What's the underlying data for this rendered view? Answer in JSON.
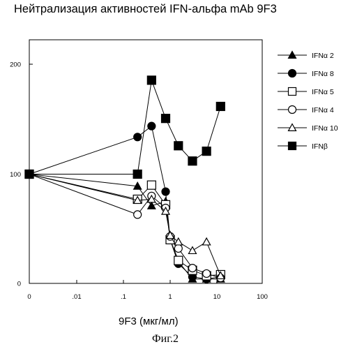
{
  "chart_data": {
    "type": "line",
    "title": "Нейтрализация активностей IFN-альфа mAb 9F3",
    "xlabel": "9F3 (мкг/мл)",
    "ylabel": "",
    "x_scale": "log",
    "x_ticks": [
      "0",
      ".01",
      ".1",
      "1",
      "10",
      "100"
    ],
    "y_ticks": [
      "0",
      "100",
      "200"
    ],
    "ylim": [
      0,
      225
    ],
    "grid": false,
    "legend_position": "right",
    "series": [
      {
        "name": "IFNα 2",
        "marker": "filled-triangle",
        "points": [
          [
            0,
            100
          ],
          [
            0.2,
            89
          ],
          [
            0.4,
            71
          ],
          [
            0.8,
            75
          ],
          [
            1.0,
            40
          ],
          [
            1.5,
            20
          ],
          [
            3.0,
            4
          ],
          [
            6.0,
            4
          ],
          [
            12.0,
            4
          ]
        ]
      },
      {
        "name": "IFNα 8",
        "marker": "filled-circle",
        "points": [
          [
            0,
            100
          ],
          [
            0.2,
            134
          ],
          [
            0.4,
            144
          ],
          [
            0.8,
            84
          ],
          [
            1.0,
            40
          ],
          [
            1.5,
            18
          ],
          [
            3.0,
            6
          ],
          [
            6.0,
            4
          ],
          [
            12.0,
            6
          ]
        ]
      },
      {
        "name": "IFNα 5",
        "marker": "open-square",
        "points": [
          [
            0,
            100
          ],
          [
            0.2,
            77
          ],
          [
            0.4,
            90
          ],
          [
            0.8,
            72
          ],
          [
            1.0,
            40
          ],
          [
            1.5,
            21
          ],
          [
            3.0,
            12
          ],
          [
            6.0,
            7
          ],
          [
            12.0,
            8
          ]
        ]
      },
      {
        "name": "IFNα 4",
        "marker": "open-circle",
        "points": [
          [
            0,
            100
          ],
          [
            0.2,
            63
          ],
          [
            0.4,
            80
          ],
          [
            0.8,
            69
          ],
          [
            1.0,
            43
          ],
          [
            1.5,
            32
          ],
          [
            3.0,
            14
          ],
          [
            6.0,
            9
          ],
          [
            12.0,
            5
          ]
        ]
      },
      {
        "name": "IFNα 10",
        "marker": "open-triangle",
        "points": [
          [
            0,
            100
          ],
          [
            0.2,
            76
          ],
          [
            0.4,
            77
          ],
          [
            0.8,
            66
          ],
          [
            1.0,
            44
          ],
          [
            1.5,
            38
          ],
          [
            3.0,
            30
          ],
          [
            6.0,
            38
          ],
          [
            12.0,
            7
          ]
        ]
      },
      {
        "name": "IFNβ",
        "marker": "filled-square",
        "points": [
          [
            0,
            100
          ],
          [
            0.2,
            100
          ],
          [
            0.4,
            186
          ],
          [
            0.8,
            151
          ],
          [
            1.5,
            126
          ],
          [
            3.0,
            112
          ],
          [
            6.0,
            121
          ],
          [
            12.0,
            162
          ]
        ]
      }
    ]
  },
  "caption": "Фиг.2"
}
